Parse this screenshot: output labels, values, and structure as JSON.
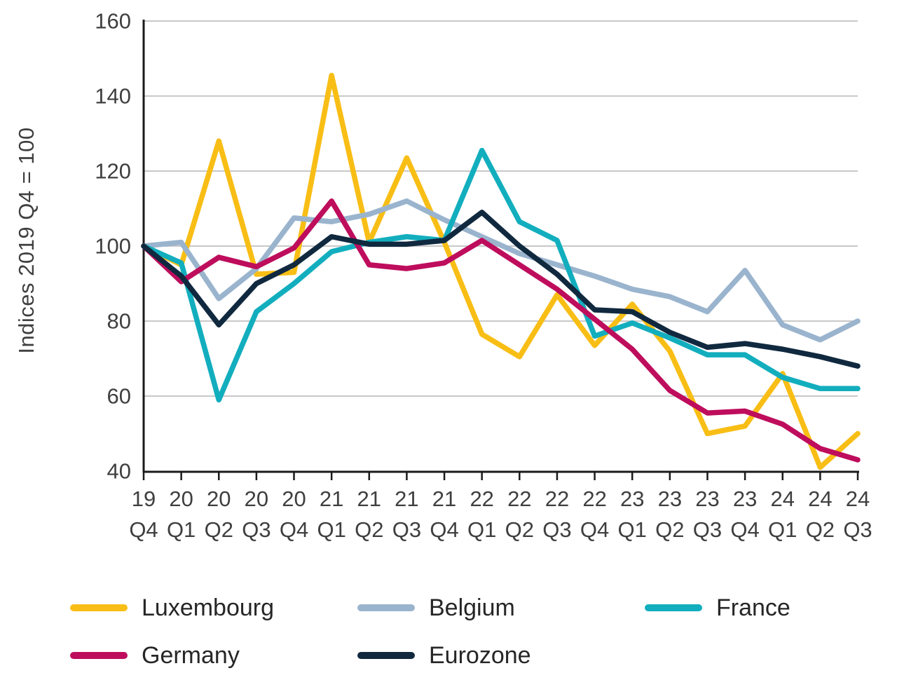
{
  "chart_data": {
    "type": "line",
    "title": "",
    "xlabel": "",
    "ylabel": "Indices 2019 Q4 = 100",
    "ylim": [
      40,
      160
    ],
    "yticks": [
      40,
      60,
      80,
      100,
      120,
      140,
      160
    ],
    "grid": true,
    "legend_position": "bottom",
    "categories": [
      [
        "19",
        "Q4"
      ],
      [
        "20",
        "Q1"
      ],
      [
        "20",
        "Q2"
      ],
      [
        "20",
        "Q3"
      ],
      [
        "20",
        "Q4"
      ],
      [
        "21",
        "Q1"
      ],
      [
        "21",
        "Q2"
      ],
      [
        "21",
        "Q3"
      ],
      [
        "21",
        "Q4"
      ],
      [
        "22",
        "Q1"
      ],
      [
        "22",
        "Q2"
      ],
      [
        "22",
        "Q3"
      ],
      [
        "22",
        "Q4"
      ],
      [
        "23",
        "Q1"
      ],
      [
        "23",
        "Q2"
      ],
      [
        "23",
        "Q3"
      ],
      [
        "23",
        "Q4"
      ],
      [
        "24",
        "Q1"
      ],
      [
        "24",
        "Q2"
      ],
      [
        "24",
        "Q3"
      ]
    ],
    "series": [
      {
        "name": "Luxembourg",
        "color": "#F8BE15",
        "values": [
          100,
          95,
          128,
          92.5,
          93,
          145.5,
          101,
          123.5,
          101,
          76.5,
          70.5,
          87,
          73.5,
          84.5,
          72,
          50,
          52,
          66,
          41,
          50
        ]
      },
      {
        "name": "Belgium",
        "color": "#9AB4CE",
        "values": [
          100,
          101,
          86,
          94,
          107.5,
          106.5,
          108.5,
          112,
          107,
          102.5,
          98,
          95,
          92,
          88.5,
          86.5,
          82.5,
          93.5,
          79,
          75,
          80
        ]
      },
      {
        "name": "France",
        "color": "#12AEBE",
        "values": [
          100,
          95.5,
          59,
          82.5,
          90,
          98.5,
          101,
          102.5,
          101.5,
          125.5,
          106.5,
          101.5,
          76,
          79.5,
          75.5,
          71,
          71,
          65,
          62,
          62
        ]
      },
      {
        "name": "Germany",
        "color": "#BE0D5C",
        "values": [
          100,
          90.5,
          97,
          94.5,
          99.5,
          112,
          95,
          94,
          95.5,
          101.5,
          95,
          88.5,
          80.5,
          72.5,
          61.5,
          55.5,
          56,
          52.5,
          46,
          43
        ]
      },
      {
        "name": "Eurozone",
        "color": "#10293F",
        "values": [
          100,
          92,
          79,
          90,
          95,
          102.5,
          100.5,
          100.5,
          101.5,
          109,
          100,
          92.5,
          83,
          82.5,
          77,
          73,
          74,
          72.5,
          70.5,
          68
        ]
      }
    ],
    "colors": {
      "grid": "#c8c8c8",
      "axis": "#1a1a1a",
      "tick_text": "#3f3f3f"
    }
  }
}
